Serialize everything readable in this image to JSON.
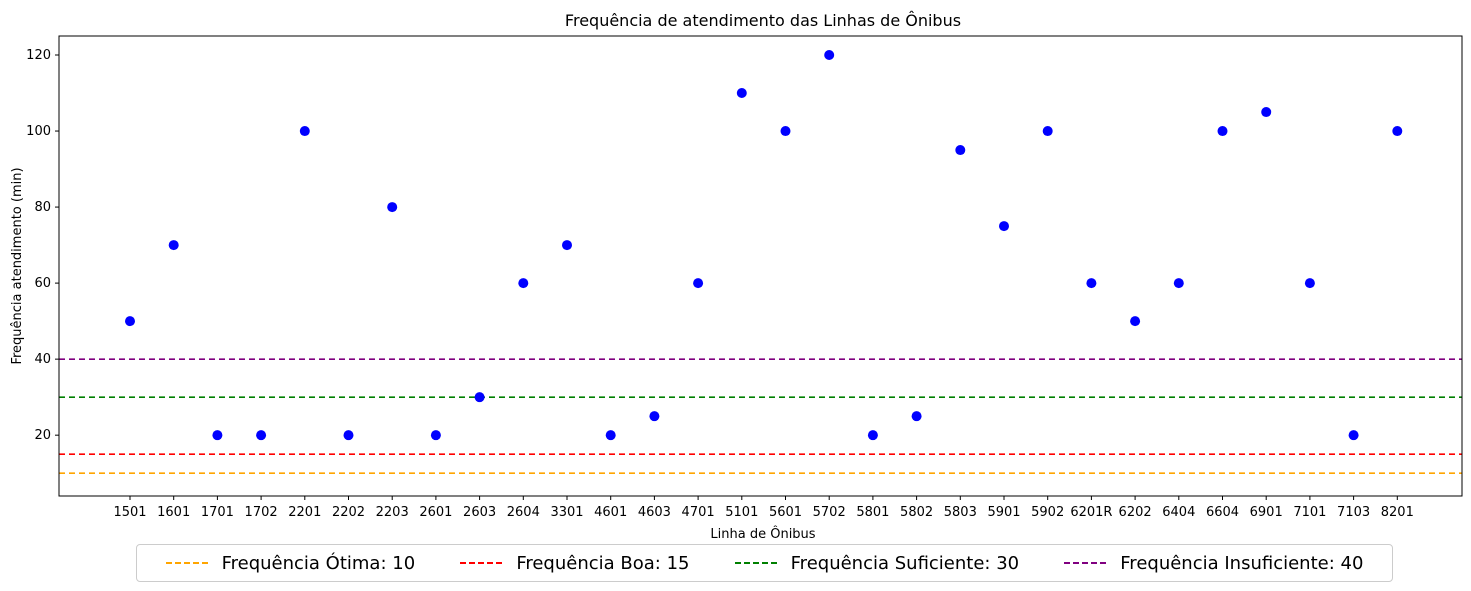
{
  "chart_data": {
    "type": "scatter",
    "title": "Frequência de atendimento das Linhas de Ônibus",
    "xlabel": "Linha de Ônibus",
    "ylabel": "Frequência atendimento (min)",
    "ylim": [
      4,
      125
    ],
    "yticks": [
      20,
      40,
      60,
      80,
      100,
      120
    ],
    "grid": false,
    "legend_position": "bottom-center",
    "point_color": "#0000ff",
    "categories": [
      "1501",
      "1601",
      "1701",
      "1702",
      "2201",
      "2202",
      "2203",
      "2601",
      "2603",
      "2604",
      "3301",
      "4601",
      "4603",
      "4701",
      "5101",
      "5601",
      "5702",
      "5801",
      "5802",
      "5803",
      "5901",
      "5902",
      "6201R",
      "6202",
      "6404",
      "6604",
      "6901",
      "7101",
      "7103",
      "8201"
    ],
    "values": [
      50,
      70,
      20,
      20,
      100,
      20,
      80,
      20,
      30,
      60,
      70,
      20,
      25,
      60,
      110,
      100,
      120,
      20,
      25,
      95,
      75,
      100,
      60,
      50,
      60,
      100,
      105,
      60,
      20,
      100
    ],
    "reference_lines": [
      {
        "label": "Frequência Ótima: 10",
        "value": 10,
        "color": "#ffa500"
      },
      {
        "label": "Frequência Boa: 15",
        "value": 15,
        "color": "#ff0000"
      },
      {
        "label": "Frequência Suficiente: 30",
        "value": 30,
        "color": "#008000"
      },
      {
        "label": "Frequência Insuficiente: 40",
        "value": 40,
        "color": "#800080"
      }
    ]
  }
}
